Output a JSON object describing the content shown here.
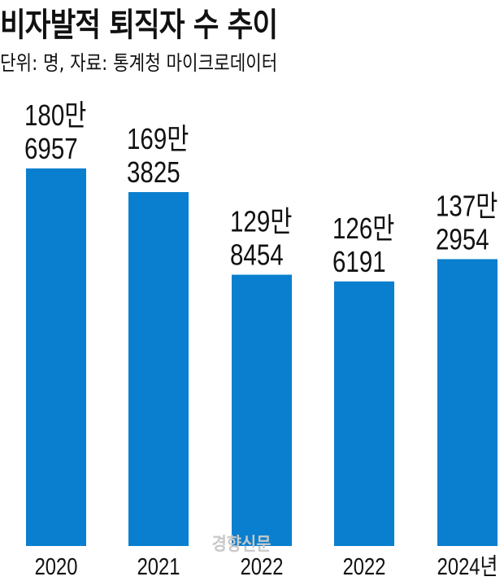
{
  "chart_data": {
    "type": "bar",
    "title": "비자발적 퇴직자 수 추이",
    "subtitle": "단위: 명, 자료: 통계청 마이크로데이터",
    "categories": [
      "2020",
      "2021",
      "2022",
      "2022",
      "2024년"
    ],
    "values": [
      1806957,
      1693825,
      1298454,
      1266191,
      1372954
    ],
    "data_labels": [
      [
        "180만",
        "6957"
      ],
      [
        "169만",
        "3825"
      ],
      [
        "129만",
        "8454"
      ],
      [
        "126만",
        "6191"
      ],
      [
        "137만",
        "2954"
      ]
    ],
    "ylim": [
      0,
      1806957
    ],
    "grid": false,
    "bar_color": "#0a7fcf",
    "xlabel": "",
    "ylabel": ""
  },
  "watermark": "경향신문"
}
